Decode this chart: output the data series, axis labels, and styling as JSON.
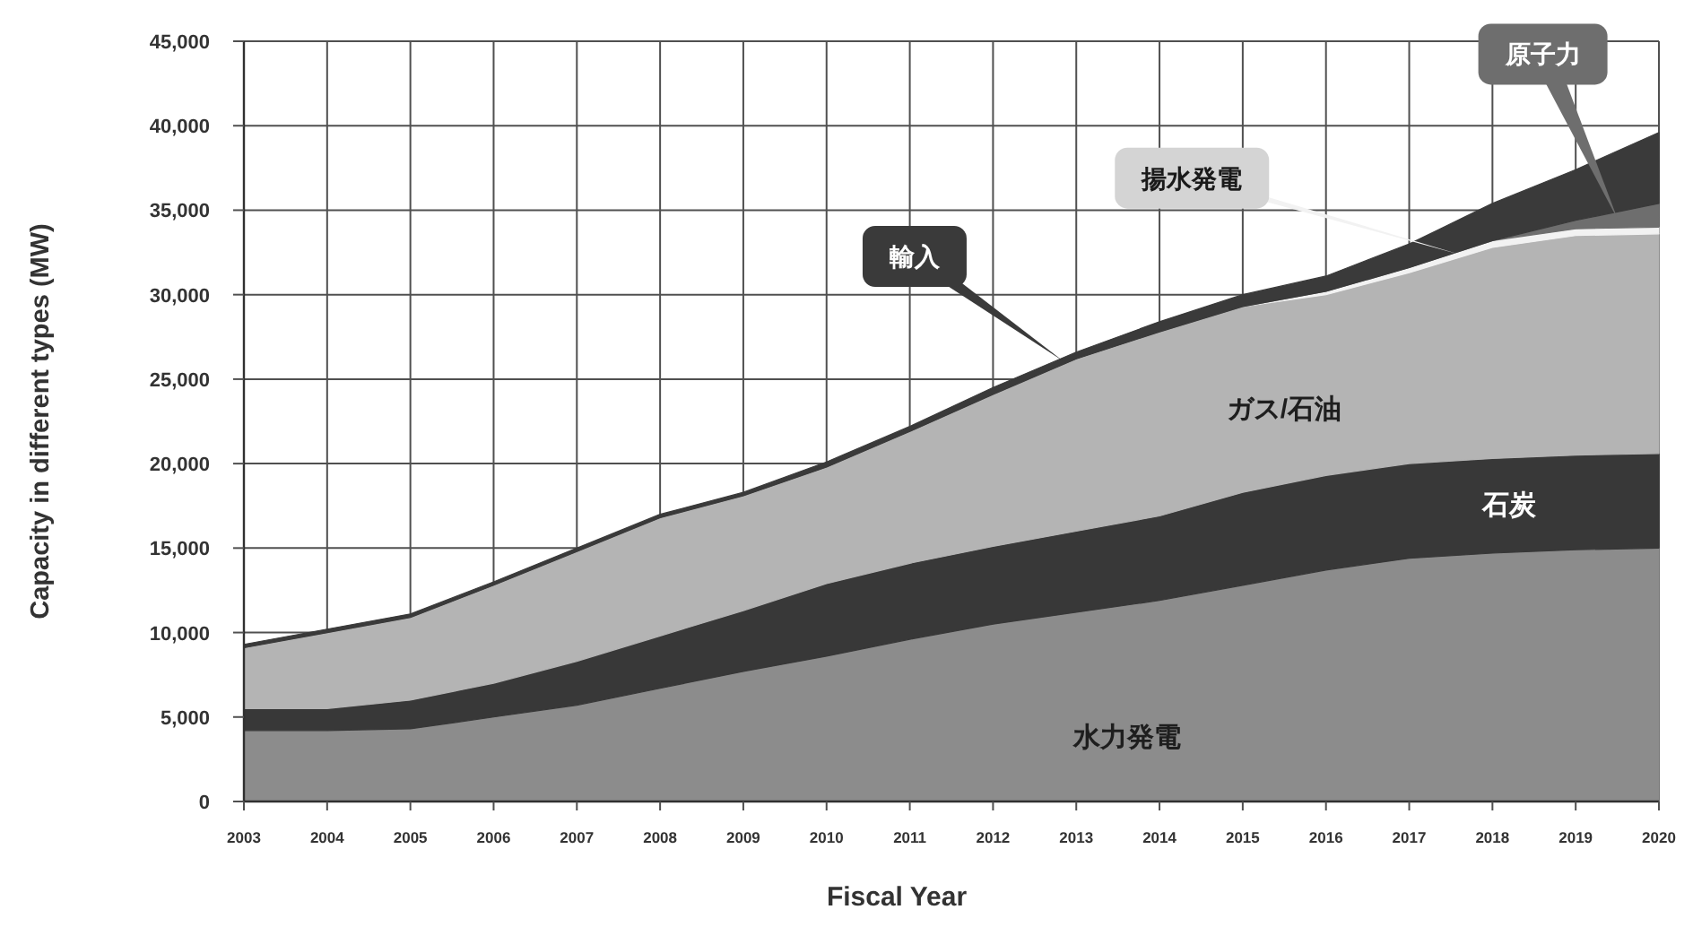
{
  "chart_data": {
    "type": "area",
    "stacked": true,
    "xlabel": "Fiscal Year",
    "ylabel": "Capacity in different types (MW)",
    "x": [
      2003,
      2004,
      2005,
      2006,
      2007,
      2008,
      2009,
      2010,
      2011,
      2012,
      2013,
      2014,
      2015,
      2016,
      2017,
      2018,
      2019,
      2020
    ],
    "xlim": [
      2003,
      2020
    ],
    "xticks": [
      2003,
      2004,
      2005,
      2006,
      2007,
      2008,
      2009,
      2010,
      2011,
      2012,
      2013,
      2014,
      2015,
      2016,
      2017,
      2018,
      2019,
      2020
    ],
    "ylim": [
      0,
      45000
    ],
    "yticks": [
      0,
      {
        "value": 5000,
        "label": "5,000"
      },
      {
        "value": 10000,
        "label": "10,000"
      },
      {
        "value": 15000,
        "label": "15,000"
      },
      {
        "value": 20000,
        "label": "20,000"
      },
      {
        "value": 25000,
        "label": "25,000"
      },
      {
        "value": 30000,
        "label": "30,000"
      },
      {
        "value": 35000,
        "label": "35,000"
      },
      {
        "value": 40000,
        "label": "40,000"
      },
      {
        "value": 45000,
        "label": "45,000"
      }
    ],
    "grid": true,
    "series": [
      {
        "name": "水力発電",
        "color": "#8c8c8c",
        "values": [
          4200,
          4200,
          4300,
          5000,
          5700,
          6700,
          7700,
          8600,
          9600,
          10500,
          11200,
          11900,
          12800,
          13700,
          14400,
          14700,
          14900,
          15000
        ]
      },
      {
        "name": "石炭",
        "color": "#383838",
        "values": [
          1300,
          1300,
          1700,
          2000,
          2600,
          3100,
          3600,
          4300,
          4500,
          4600,
          4800,
          5000,
          5500,
          5600,
          5600,
          5600,
          5600,
          5600
        ]
      },
      {
        "name": "ガス/石油",
        "color": "#b4b4b4",
        "values": [
          3600,
          4500,
          4900,
          5800,
          6500,
          7000,
          6800,
          6900,
          7800,
          9000,
          10200,
          10900,
          11000,
          10700,
          11300,
          12500,
          13000,
          13000
        ]
      },
      {
        "name": "揚水発電",
        "color": "#f2f2f2",
        "values": [
          0,
          0,
          0,
          0,
          0,
          0,
          0,
          0,
          0,
          0,
          0,
          0,
          0,
          200,
          300,
          400,
          400,
          400
        ]
      },
      {
        "name": "原子力",
        "color": "#6e6e6e",
        "values": [
          0,
          0,
          0,
          0,
          0,
          0,
          0,
          0,
          0,
          0,
          0,
          0,
          0,
          0,
          0,
          0,
          500,
          1400
        ]
      },
      {
        "name": "輸入",
        "color": "#3a3a3a",
        "values": [
          200,
          200,
          200,
          200,
          200,
          200,
          200,
          300,
          300,
          400,
          400,
          600,
          700,
          900,
          1400,
          2200,
          3000,
          4200
        ]
      }
    ]
  }
}
